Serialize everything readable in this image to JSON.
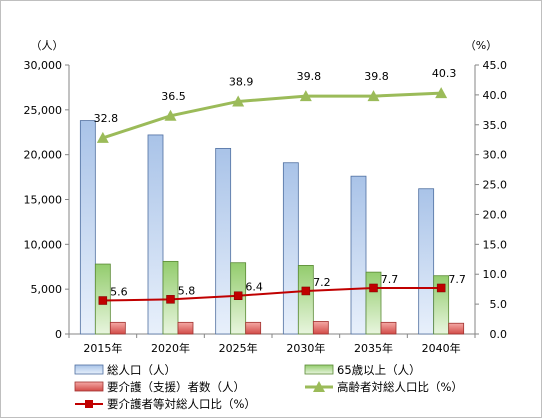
{
  "chart_data": {
    "type": "bar",
    "categories": [
      "2015年",
      "2020年",
      "2025年",
      "2030年",
      "2035年",
      "2040年"
    ],
    "y_left": {
      "unit_label": "（人）",
      "min": 0,
      "max": 30000,
      "step": 5000,
      "tick_labels": [
        "0",
        "5,000",
        "10,000",
        "15,000",
        "20,000",
        "25,000",
        "30,000"
      ]
    },
    "y_right": {
      "unit_label": "（%）",
      "min": 0,
      "max": 45,
      "step": 5,
      "tick_labels": [
        "0.0",
        "5.0",
        "10.0",
        "15.0",
        "20.0",
        "25.0",
        "30.0",
        "35.0",
        "40.0",
        "45.0"
      ]
    },
    "grid": false,
    "legend_position": "bottom",
    "series": [
      {
        "name": "総人口（人）",
        "type": "bar",
        "axis": "left",
        "color": "#4f81bd",
        "values": [
          23800,
          22200,
          20700,
          19100,
          17600,
          16200
        ]
      },
      {
        "name": "65歳以上（人）",
        "type": "bar",
        "axis": "left",
        "color": "#77b048",
        "values": [
          7800,
          8100,
          7950,
          7650,
          6900,
          6500
        ]
      },
      {
        "name": "要介護（支援）者数（人）",
        "type": "bar",
        "axis": "left",
        "color": "#c0504d",
        "values": [
          1300,
          1300,
          1300,
          1400,
          1300,
          1200
        ]
      },
      {
        "name": "高齢者対総人口比（%）",
        "type": "line",
        "axis": "right",
        "color": "#9bbb59",
        "marker": "triangle",
        "values": [
          32.8,
          36.5,
          38.9,
          39.8,
          39.8,
          40.3
        ],
        "labels": [
          "32.8",
          "36.5",
          "38.9",
          "39.8",
          "39.8",
          "40.3"
        ]
      },
      {
        "name": "要介護者等対総人口比（%）",
        "type": "line",
        "axis": "right",
        "color": "#c00000",
        "marker": "square",
        "values": [
          5.6,
          5.8,
          6.4,
          7.2,
          7.7,
          7.7
        ],
        "labels": [
          "5.6",
          "5.8",
          "6.4",
          "7.2",
          "7.7",
          "7.7"
        ]
      }
    ]
  }
}
